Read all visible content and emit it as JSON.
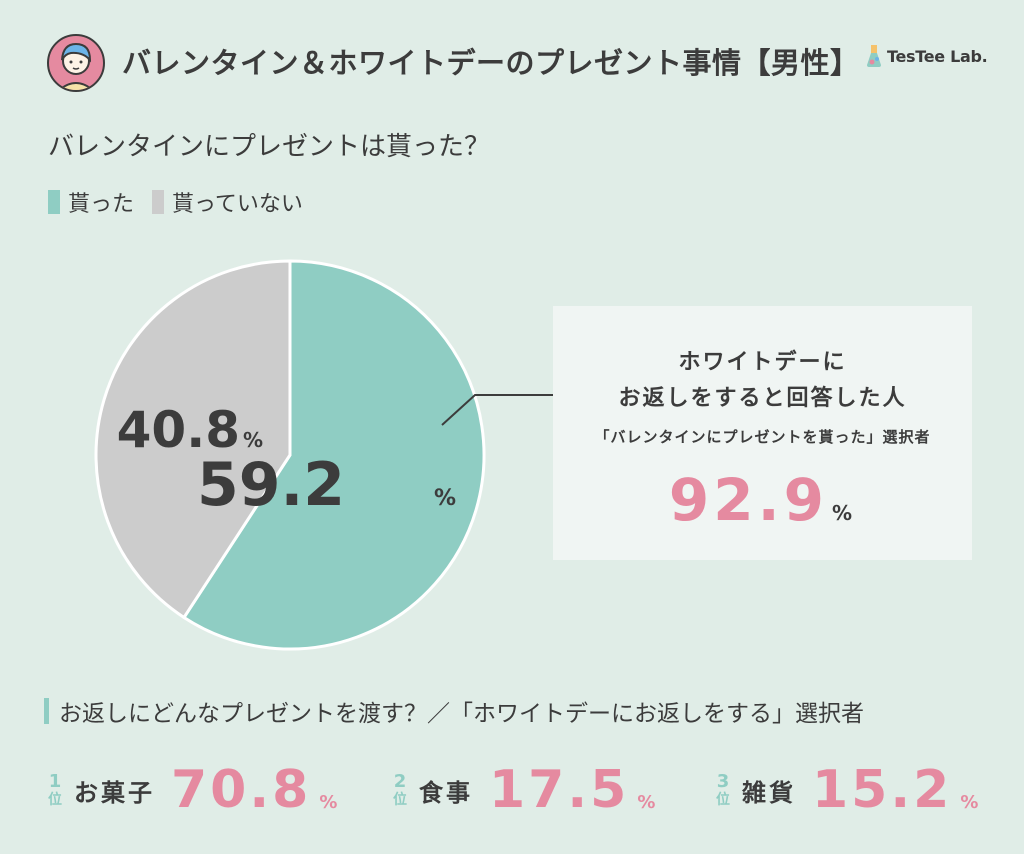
{
  "header": {
    "title": "バレンタイン＆ホワイトデーのプレゼント事情【男性】",
    "brand": "TesTee Lab."
  },
  "question": "バレンタインにプレゼントは貰った？",
  "legend": [
    {
      "label": "貰った",
      "color": "#8fcdc3"
    },
    {
      "label": "貰っていない",
      "color": "#cccccc"
    }
  ],
  "chart_data": {
    "type": "pie",
    "title": "バレンタインにプレゼントは貰った？",
    "slices": [
      {
        "label": "貰った",
        "value": 59.2,
        "display": "59.2",
        "unit": "%",
        "color": "#8fcdc3"
      },
      {
        "label": "貰っていない",
        "value": 40.8,
        "display": "40.8",
        "unit": "%",
        "color": "#cccccc"
      }
    ]
  },
  "callout": {
    "line1": "ホワイトデーに",
    "line2": "お返しをすると回答した人",
    "line3": "「バレンタインにプレゼントを貰った」選択者",
    "value": "92.9",
    "unit": "%"
  },
  "returns": {
    "heading": "お返しにどんなプレゼントを渡す？／「ホワイトデーにお返しをする」選択者",
    "rank_unit": "位",
    "items": [
      {
        "rank": "1",
        "label": "お菓子",
        "value": "70.8",
        "unit": "%"
      },
      {
        "rank": "2",
        "label": "食事",
        "value": "17.5",
        "unit": "%"
      },
      {
        "rank": "3",
        "label": "雑貨",
        "value": "15.2",
        "unit": "%"
      }
    ]
  }
}
